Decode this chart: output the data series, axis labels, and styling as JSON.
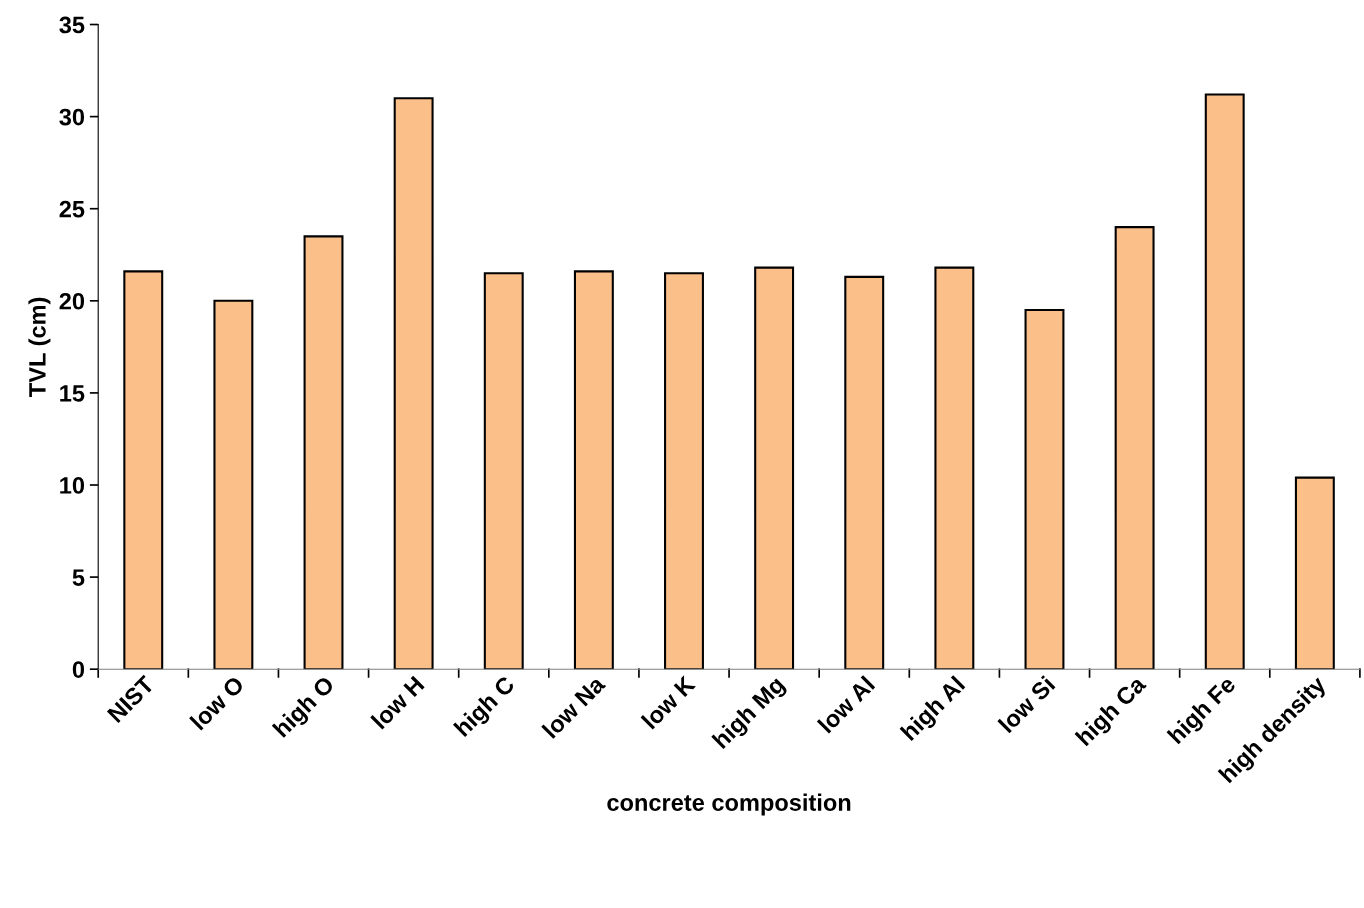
{
  "chart_data": {
    "type": "bar",
    "xlabel": "concrete composition",
    "ylabel": "TVL (cm)",
    "categories": [
      "NIST",
      "low O",
      "high O",
      "low H",
      "high C",
      "low Na",
      "low K",
      "high Mg",
      "low Al",
      "high Al",
      "low Si",
      "high Ca",
      "high Fe",
      "high density"
    ],
    "values": [
      21.6,
      20.0,
      23.5,
      31.0,
      21.5,
      21.6,
      21.5,
      21.8,
      21.3,
      21.8,
      19.5,
      24.0,
      31.2,
      10.4
    ],
    "color": "#fbbf8a",
    "ylim": [
      0,
      35
    ],
    "yticks": [
      0,
      5,
      10,
      15,
      20,
      25,
      30,
      35
    ],
    "grid": false,
    "legend": false
  }
}
